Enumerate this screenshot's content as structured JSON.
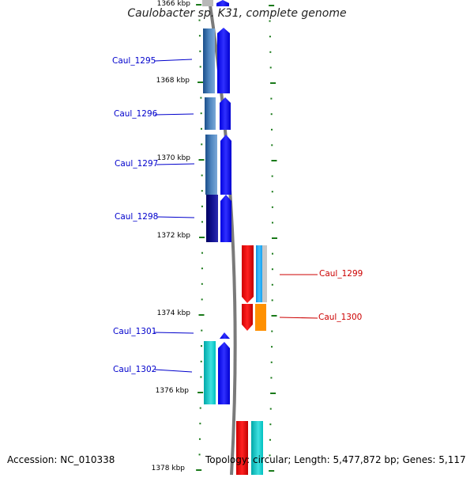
{
  "title": "Caulobacter sp. K31, complete genome",
  "accession_text": "Accession: NC_010338",
  "summary_text": "Topology: circular; Length: 5,477,872 bp; Genes: 5,117",
  "kbp_labels": [
    "1366 kbp",
    "1368 kbp",
    "1370 kbp",
    "1372 kbp",
    "1374 kbp",
    "1376 kbp",
    "1378 kbp"
  ],
  "genes": [
    {
      "label": "Caul_1295",
      "strand": "+",
      "color": "#0000cc"
    },
    {
      "label": "Caul_1296",
      "strand": "+",
      "color": "#0000cc"
    },
    {
      "label": "Caul_1297",
      "strand": "+",
      "color": "#0000cc"
    },
    {
      "label": "Caul_1298",
      "strand": "+",
      "color": "#0000cc"
    },
    {
      "label": "Caul_1299",
      "strand": "-",
      "color": "#cc0000"
    },
    {
      "label": "Caul_1300",
      "strand": "-",
      "color": "#cc0000"
    },
    {
      "label": "Caul_1301",
      "strand": "+",
      "color": "#0000cc"
    },
    {
      "label": "Caul_1302",
      "strand": "+",
      "color": "#0000cc"
    }
  ]
}
